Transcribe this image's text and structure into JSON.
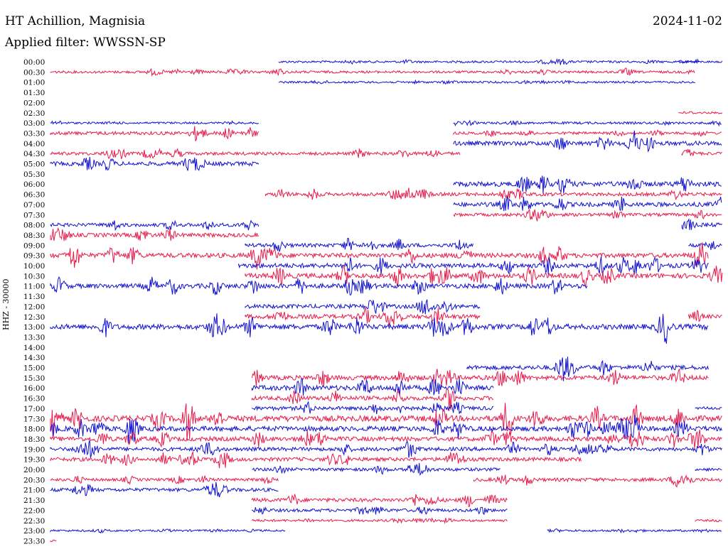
{
  "header": {
    "station": "HT Achillion, Magnisia",
    "date": "2024-11-02",
    "filter": "Applied filter: WWSSN-SP"
  },
  "chart_data": {
    "type": "line",
    "title": "HT Achillion, Magnisia",
    "ylabel": "HHZ - 30000",
    "xlabel": "",
    "row_interval_minutes": 30,
    "colors": {
      "even": "#1010d0",
      "odd": "#e81a4a"
    },
    "rows": [
      {
        "label": "00:00",
        "segments": [
          [
            0.34,
            0.965,
            0.08
          ],
          [
            0.935,
            1.0,
            0.05
          ]
        ]
      },
      {
        "label": "00:30",
        "segments": [
          [
            0.0,
            0.96,
            0.12
          ]
        ]
      },
      {
        "label": "01:00",
        "segments": [
          [
            0.34,
            0.96,
            0.05
          ]
        ]
      },
      {
        "label": "01:30",
        "segments": []
      },
      {
        "label": "02:00",
        "segments": []
      },
      {
        "label": "02:30",
        "segments": [
          [
            0.935,
            1.0,
            0.05
          ]
        ]
      },
      {
        "label": "03:00",
        "segments": [
          [
            0.0,
            0.31,
            0.06
          ],
          [
            0.6,
            1.0,
            0.1
          ]
        ]
      },
      {
        "label": "03:30",
        "segments": [
          [
            0.0,
            0.31,
            0.3
          ],
          [
            0.6,
            1.0,
            0.15
          ]
        ]
      },
      {
        "label": "04:00",
        "segments": [
          [
            0.6,
            1.0,
            0.45
          ]
        ]
      },
      {
        "label": "04:30",
        "segments": [
          [
            0.0,
            0.61,
            0.25
          ],
          [
            0.94,
            1.0,
            0.25
          ]
        ]
      },
      {
        "label": "05:00",
        "segments": [
          [
            0.0,
            0.31,
            0.4
          ]
        ]
      },
      {
        "label": "05:30",
        "segments": []
      },
      {
        "label": "06:00",
        "segments": [
          [
            0.6,
            1.0,
            0.55
          ]
        ]
      },
      {
        "label": "06:30",
        "segments": [
          [
            0.32,
            1.0,
            0.3
          ]
        ]
      },
      {
        "label": "07:00",
        "segments": [
          [
            0.6,
            1.0,
            0.45
          ]
        ]
      },
      {
        "label": "07:30",
        "segments": [
          [
            0.6,
            1.0,
            0.25
          ]
        ]
      },
      {
        "label": "08:00",
        "segments": [
          [
            0.0,
            0.31,
            0.3
          ],
          [
            0.94,
            1.0,
            0.4
          ]
        ]
      },
      {
        "label": "08:30",
        "segments": [
          [
            0.0,
            0.31,
            0.4
          ]
        ]
      },
      {
        "label": "09:00",
        "segments": [
          [
            0.29,
            0.63,
            0.35
          ],
          [
            0.95,
            1.0,
            0.3
          ]
        ]
      },
      {
        "label": "09:30",
        "segments": [
          [
            0.0,
            0.98,
            0.5
          ]
        ]
      },
      {
        "label": "10:00",
        "segments": [
          [
            0.28,
            0.98,
            0.5
          ]
        ]
      },
      {
        "label": "10:30",
        "segments": [
          [
            0.29,
            1.0,
            0.55
          ]
        ]
      },
      {
        "label": "11:00",
        "segments": [
          [
            0.0,
            0.8,
            0.5
          ]
        ]
      },
      {
        "label": "11:30",
        "segments": []
      },
      {
        "label": "12:00",
        "segments": [
          [
            0.29,
            0.64,
            0.4
          ]
        ]
      },
      {
        "label": "12:30",
        "segments": [
          [
            0.29,
            0.64,
            0.45
          ],
          [
            0.95,
            1.0,
            0.35
          ]
        ]
      },
      {
        "label": "13:00",
        "segments": [
          [
            0.0,
            0.98,
            0.6
          ]
        ]
      },
      {
        "label": "13:30",
        "segments": []
      },
      {
        "label": "14:00",
        "segments": []
      },
      {
        "label": "14:30",
        "segments": []
      },
      {
        "label": "15:00",
        "segments": [
          [
            0.62,
            0.98,
            0.45
          ]
        ]
      },
      {
        "label": "15:30",
        "segments": [
          [
            0.3,
            0.98,
            0.5
          ]
        ]
      },
      {
        "label": "16:00",
        "segments": [
          [
            0.3,
            0.66,
            0.55
          ]
        ]
      },
      {
        "label": "16:30",
        "segments": [
          [
            0.3,
            0.66,
            0.4
          ]
        ]
      },
      {
        "label": "17:00",
        "segments": [
          [
            0.3,
            0.66,
            0.35
          ],
          [
            0.96,
            1.0,
            0.05
          ]
        ]
      },
      {
        "label": "17:30",
        "segments": [
          [
            0.0,
            1.0,
            0.7
          ]
        ]
      },
      {
        "label": "18:00",
        "segments": [
          [
            0.0,
            1.0,
            0.55
          ]
        ]
      },
      {
        "label": "18:30",
        "segments": [
          [
            0.0,
            1.0,
            0.45
          ]
        ]
      },
      {
        "label": "19:00",
        "segments": [
          [
            0.0,
            1.0,
            0.35
          ]
        ]
      },
      {
        "label": "19:30",
        "segments": [
          [
            0.0,
            0.79,
            0.35
          ]
        ]
      },
      {
        "label": "20:00",
        "segments": [
          [
            0.3,
            0.67,
            0.25
          ],
          [
            0.96,
            1.0,
            0.05
          ]
        ]
      },
      {
        "label": "20:30",
        "segments": [
          [
            0.0,
            0.34,
            0.2
          ],
          [
            0.63,
            1.0,
            0.3
          ]
        ]
      },
      {
        "label": "21:00",
        "segments": [
          [
            0.0,
            0.34,
            0.3
          ]
        ]
      },
      {
        "label": "21:30",
        "segments": [
          [
            0.3,
            0.68,
            0.35
          ]
        ]
      },
      {
        "label": "22:00",
        "segments": [
          [
            0.3,
            0.68,
            0.25
          ]
        ]
      },
      {
        "label": "22:30",
        "segments": [
          [
            0.3,
            0.68,
            0.1
          ],
          [
            0.96,
            1.0,
            0.03
          ]
        ]
      },
      {
        "label": "23:00",
        "segments": [
          [
            0.0,
            0.35,
            0.05
          ],
          [
            0.74,
            1.0,
            0.06
          ]
        ]
      },
      {
        "label": "23:30",
        "segments": [
          [
            0.0,
            0.01,
            0.02
          ]
        ]
      }
    ]
  }
}
